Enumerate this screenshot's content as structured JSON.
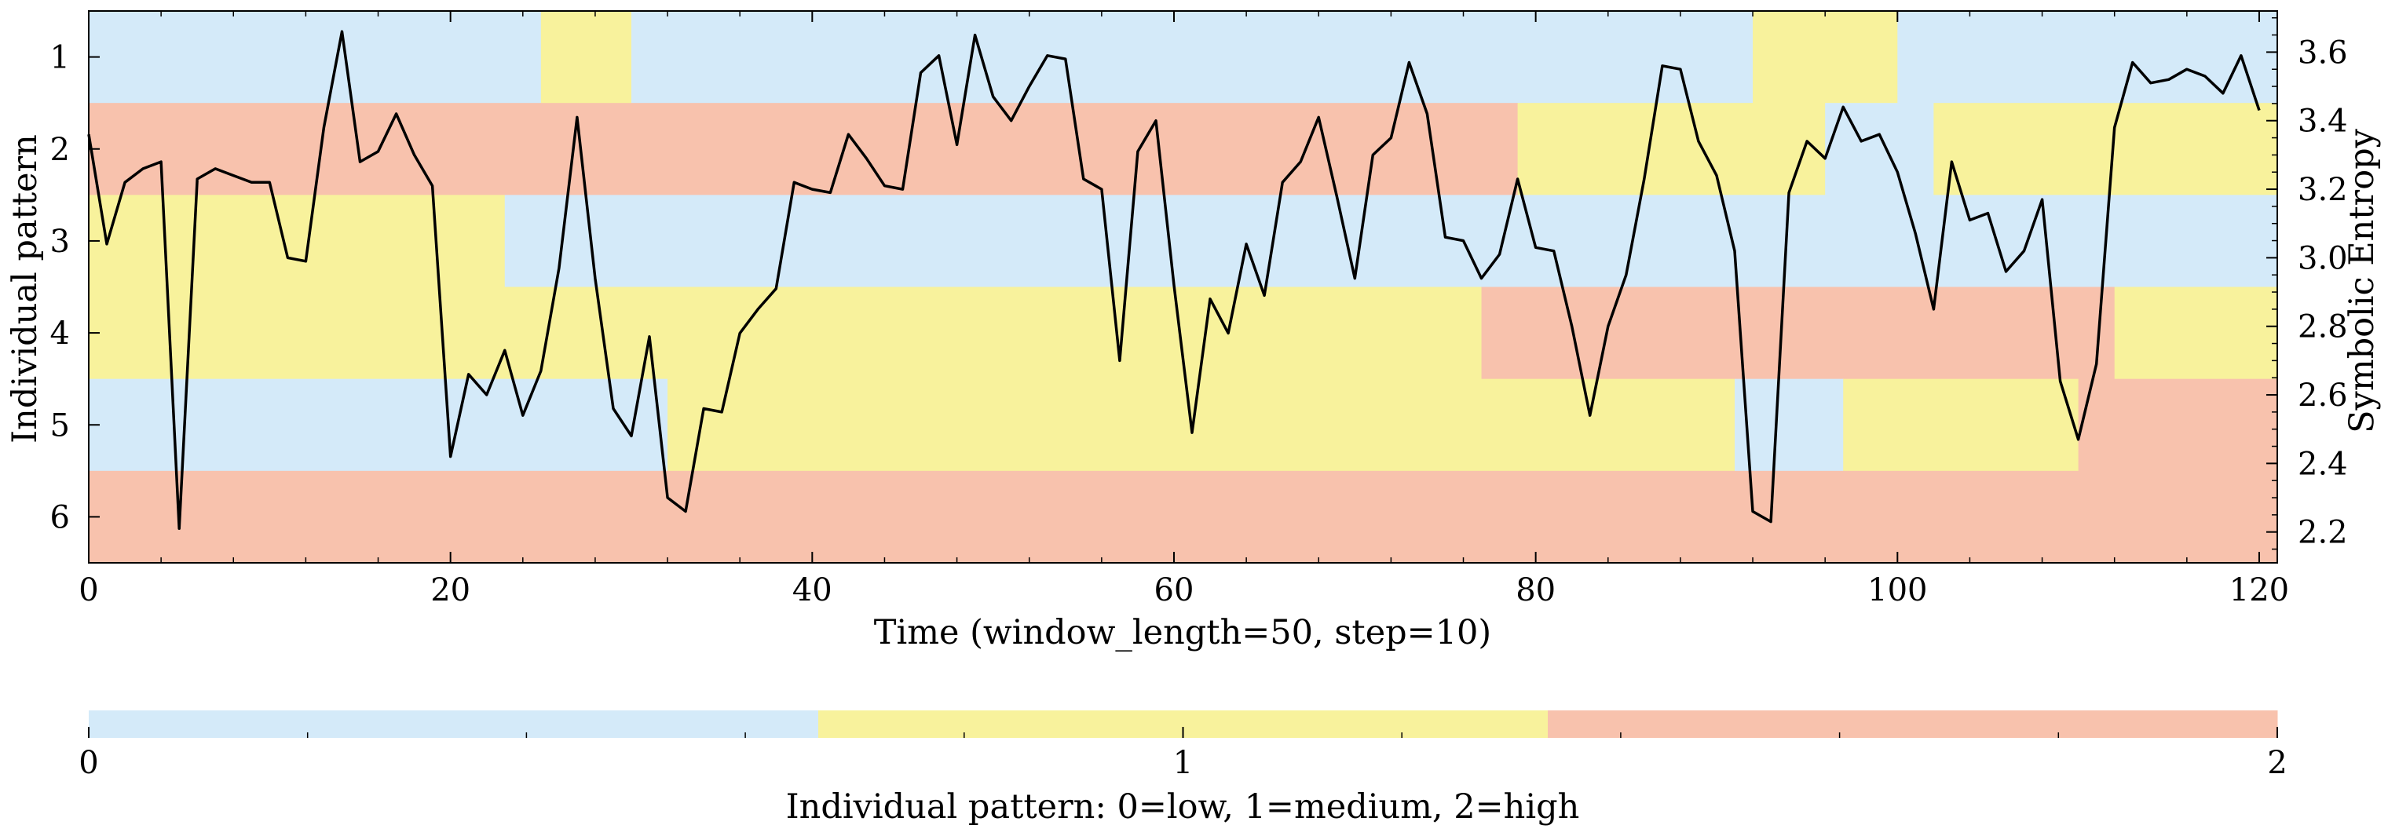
{
  "chart_data": {
    "type": "heatmap",
    "x_label": "Time (window_length=50, step=10)",
    "y_label": "Individual pattern",
    "y2_label": "Symbolic Entropy",
    "xlim": [
      0,
      121
    ],
    "x_ticks": [
      0,
      20,
      40,
      60,
      80,
      100,
      120
    ],
    "y_ticks": [
      1,
      2,
      3,
      4,
      5,
      6
    ],
    "y2lim": [
      2.11,
      3.72
    ],
    "y2_ticks": [
      "2.2",
      "2.4",
      "2.6",
      "2.8",
      "3.0",
      "3.2",
      "3.4",
      "3.6"
    ],
    "colors": {
      "0": "#d4eaf9",
      "1": "#f8f29c",
      "2": "#f8c2ad",
      "line": "#000000"
    },
    "pattern_segments": [
      [
        [
          0,
          25,
          0
        ],
        [
          25,
          30,
          1
        ],
        [
          30,
          92,
          0
        ],
        [
          92,
          100,
          1
        ],
        [
          100,
          121,
          0
        ]
      ],
      [
        [
          0,
          79,
          2
        ],
        [
          79,
          96,
          1
        ],
        [
          96,
          102,
          0
        ],
        [
          102,
          121,
          1
        ]
      ],
      [
        [
          0,
          23,
          1
        ],
        [
          23,
          121,
          0
        ]
      ],
      [
        [
          0,
          77,
          1
        ],
        [
          77,
          112,
          2
        ],
        [
          112,
          121,
          1
        ]
      ],
      [
        [
          0,
          32,
          0
        ],
        [
          32,
          91,
          1
        ],
        [
          91,
          97,
          0
        ],
        [
          97,
          110,
          1
        ],
        [
          110,
          121,
          2
        ]
      ],
      [
        [
          0,
          121,
          2
        ]
      ]
    ],
    "entropy_series": {
      "x": [
        0,
        1,
        2,
        3,
        4,
        5,
        6,
        7,
        8,
        9,
        10,
        11,
        12,
        13,
        14,
        15,
        16,
        17,
        18,
        19,
        20,
        21,
        22,
        23,
        24,
        25,
        26,
        27,
        28,
        29,
        30,
        31,
        32,
        33,
        34,
        35,
        36,
        37,
        38,
        39,
        40,
        41,
        42,
        43,
        44,
        45,
        46,
        47,
        48,
        49,
        50,
        51,
        52,
        53,
        54,
        55,
        56,
        57,
        58,
        59,
        60,
        61,
        62,
        63,
        64,
        65,
        66,
        67,
        68,
        69,
        70,
        71,
        72,
        73,
        74,
        75,
        76,
        77,
        78,
        79,
        80,
        81,
        82,
        83,
        84,
        85,
        86,
        87,
        88,
        89,
        90,
        91,
        92,
        93,
        94,
        95,
        96,
        97,
        98,
        99,
        100,
        101,
        102,
        103,
        104,
        105,
        106,
        107,
        108,
        109,
        110,
        111,
        112,
        113,
        114,
        115,
        116,
        117,
        118,
        119,
        120
      ],
      "y": [
        3.36,
        3.04,
        3.22,
        3.26,
        3.28,
        2.21,
        3.23,
        3.26,
        3.24,
        3.22,
        3.22,
        3.0,
        2.99,
        3.38,
        3.66,
        3.28,
        3.31,
        3.42,
        3.3,
        3.21,
        2.42,
        2.66,
        2.6,
        2.73,
        2.54,
        2.67,
        2.97,
        3.41,
        2.94,
        2.56,
        2.48,
        2.77,
        2.3,
        2.26,
        2.56,
        2.55,
        2.78,
        2.85,
        2.91,
        3.22,
        3.2,
        3.19,
        3.36,
        3.29,
        3.21,
        3.2,
        3.54,
        3.59,
        3.33,
        3.65,
        3.47,
        3.4,
        3.5,
        3.59,
        3.58,
        3.23,
        3.2,
        2.7,
        3.31,
        3.4,
        2.92,
        2.49,
        2.88,
        2.78,
        3.04,
        2.89,
        3.22,
        3.28,
        3.41,
        3.18,
        2.94,
        3.3,
        3.35,
        3.57,
        3.42,
        3.06,
        3.05,
        2.94,
        3.01,
        3.23,
        3.03,
        3.02,
        2.8,
        2.54,
        2.8,
        2.95,
        3.23,
        3.56,
        3.55,
        3.34,
        3.24,
        3.02,
        2.26,
        2.23,
        3.19,
        3.34,
        3.29,
        3.44,
        3.34,
        3.36,
        3.25,
        3.07,
        2.85,
        3.28,
        3.11,
        3.13,
        2.96,
        3.02,
        3.17,
        2.64,
        2.47,
        2.69,
        3.38,
        3.57,
        3.51,
        3.52,
        3.55,
        3.53,
        3.48,
        3.59,
        3.43
      ]
    },
    "colorbar": {
      "label": "Individual pattern: 0=low, 1=medium, 2=high",
      "ticks": [
        "0",
        "1",
        "2"
      ],
      "range": [
        0,
        2
      ]
    }
  }
}
